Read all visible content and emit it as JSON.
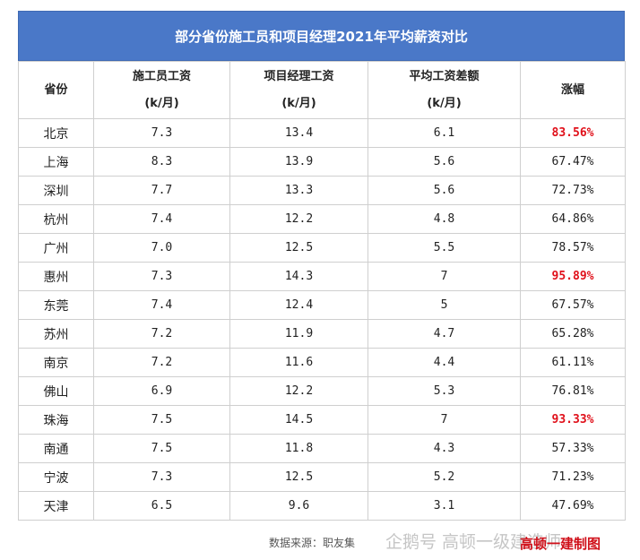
{
  "header": {
    "title": "部分省份施工员和项目经理2021年平均薪资对比"
  },
  "table": {
    "columns": [
      [
        "省份"
      ],
      [
        "施工员工资",
        "(k/月)"
      ],
      [
        "项目经理工资",
        "(k/月)"
      ],
      [
        "平均工资差额",
        "(k/月)"
      ],
      [
        "涨幅"
      ]
    ],
    "rows": [
      [
        "北京",
        "7.3",
        "13.4",
        "6.1",
        "83.56%"
      ],
      [
        "上海",
        "8.3",
        "13.9",
        "5.6",
        "67.47%"
      ],
      [
        "深圳",
        "7.7",
        "13.3",
        "5.6",
        "72.73%"
      ],
      [
        "杭州",
        "7.4",
        "12.2",
        "4.8",
        "64.86%"
      ],
      [
        "广州",
        "7.0",
        "12.5",
        "5.5",
        "78.57%"
      ],
      [
        "惠州",
        "7.3",
        "14.3",
        "7",
        "95.89%"
      ],
      [
        "东莞",
        "7.4",
        "12.4",
        "5",
        "67.57%"
      ],
      [
        "苏州",
        "7.2",
        "11.9",
        "4.7",
        "65.28%"
      ],
      [
        "南京",
        "7.2",
        "11.6",
        "4.4",
        "61.11%"
      ],
      [
        "佛山",
        "6.9",
        "12.2",
        "5.3",
        "76.81%"
      ],
      [
        "珠海",
        "7.5",
        "14.5",
        "7",
        "93.33%"
      ],
      [
        "南通",
        "7.5",
        "11.8",
        "4.3",
        "57.33%"
      ],
      [
        "宁波",
        "7.3",
        "12.5",
        "5.2",
        "71.23%"
      ],
      [
        "天津",
        "6.5",
        "9.6",
        "3.1",
        "47.69%"
      ]
    ],
    "highlighted_rows": [
      0,
      5,
      10
    ]
  },
  "footer": {
    "source": "数据来源：职友集",
    "watermark": "企鹅号 高顿一级建造师",
    "stamp": "高顿一建制图"
  }
}
